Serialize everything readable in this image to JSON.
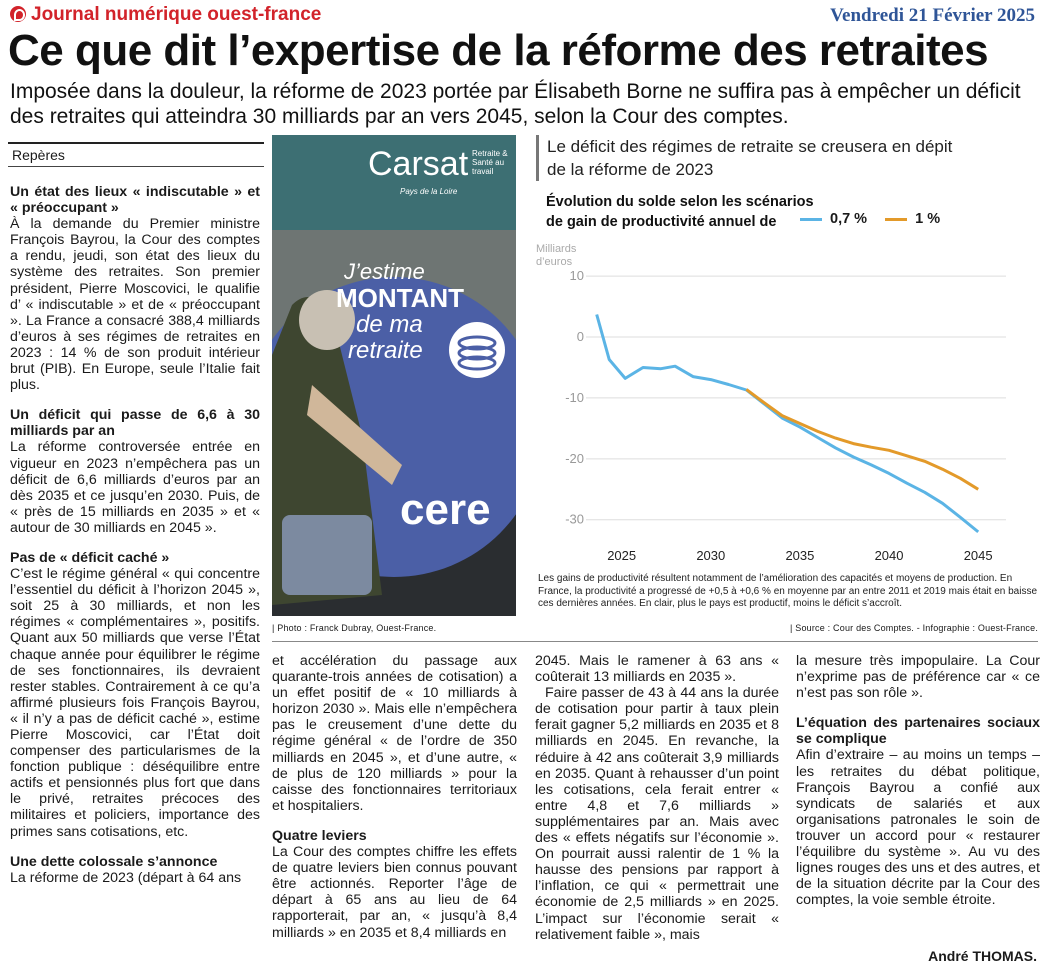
{
  "header": {
    "masthead": "Journal numérique ouest-france",
    "date": "Vendredi 21 Février 2025",
    "title": "Ce que dit l’expertise de la réforme des retraites",
    "subtitle": "Imposée dans la douleur, la réforme de 2023 portée par Élisabeth Borne ne suffira pas à empêcher un déficit des retraites qui atteindra 30 milliards par an vers 2045, selon la Cour des comptes.",
    "brand_color": "#d2232a",
    "date_color": "#2f5597"
  },
  "reperes": "Repères",
  "col1": {
    "h1": "Un état des lieux « indiscutable » et « préoccupant »",
    "p1": "À la demande du Premier ministre François Bayrou, la Cour des comptes a rendu, jeudi, son état des lieux du système des retraites. Son premier président, Pierre Moscovici, le qualifie d’ « indiscutable » et de « préoccupant ». La France a consacré 388,4 milliards d’euros à ses régimes de retraites en 2023 : 14 % de son produit intérieur brut (PIB). En Europe, seule l’Italie fait plus.",
    "h2": "Un déficit qui passe de 6,6 à 30 milliards par an",
    "p2": "La réforme controversée entrée en vigueur en 2023 n’empêchera pas un déficit de 6,6 milliards d’euros par an dès 2035 et ce jusqu’en 2030. Puis, de « près de 15 milliards en 2035 » et « autour de 30 milliards en 2045 ».",
    "h3": "Pas de « déficit caché »",
    "p3": "C’est le régime général « qui concentre l’essentiel du déficit à l’horizon 2045 », soit 25 à 30 milliards, et non les régimes « complémentaires », positifs. Quant aux 50 milliards que verse l’État chaque année pour équilibrer le régime de ses fonctionnaires, ils devraient rester stables. Contrairement à ce qu’a affirmé plusieurs fois François Bayrou, « il n’y a pas de déficit caché », estime Pierre Moscovici, car l’État doit compenser des particularismes de la fonction publique : déséquilibre entre actifs et pensionnés plus fort que dans le privé, retraites précoces des militaires et policiers, importance des primes sans cotisations, etc.",
    "h4": "Une dette colossale s’annonce",
    "p4": "La réforme de 2023 (départ à 64 ans"
  },
  "col2": {
    "p1": "et accélération du passage aux quarante-trois années de cotisation) a un effet positif de « 10 milliards à horizon 2030 ». Mais elle n’empêchera pas le creusement d’une dette du régime général « de l’ordre de 350 milliards en 2045 », et d’une autre, « de plus de 120 milliards » pour la caisse des fonctionnaires territoriaux et hospitaliers.",
    "h1": "Quatre leviers",
    "p2": "La Cour des comptes chiffre les effets de quatre leviers bien connus pouvant être actionnés. Reporter l’âge de départ à 65 ans au lieu de 64 rapporterait, par an, « jusqu’à 8,4 milliards » en 2035 et 8,4 milliards en"
  },
  "col3": {
    "p1": "2045. Mais le ramener à 63 ans « coûterait 13 milliards en 2035 ».",
    "p2": "Faire passer de 43 à 44 ans la durée de cotisation pour partir à taux plein ferait gagner 5,2 milliards en 2035 et 8 milliards en 2045. En revanche, la réduire à 42 ans coûterait 3,9 milliards en 2035. Quant à rehausser d’un point les cotisations, cela ferait entrer « entre 4,8 et 7,6 milliards » supplémentaires par an. Mais avec des « effets négatifs sur l’économie ». On pourrait aussi ralentir de 1 % la hausse des pensions par rapport à l’inflation, ce qui « permettrait une économie de 2,5 milliards » en 2025. L’impact sur l’économie serait « relativement faible », mais"
  },
  "col4": {
    "p1": "la mesure très impopulaire. La Cour n’exprime pas de préférence car « ce n’est pas son rôle ».",
    "h1": "L’équation des partenaires sociaux se complique",
    "p2": "Afin d’extraire – au moins un temps – les retraites du débat politique, François Bayrou a confié aux syndicats de salariés et aux organisations patronales le soin de trouver un accord pour « restaurer l’équilibre du système ». Au vu des lignes rouges des uns et des autres, et de la situation décrite par la Cour des comptes, la voie semble étroite.",
    "author": "André THOMAS."
  },
  "photo": {
    "caption": "| Photo : Franck Dubray, Ouest-France.",
    "sign_brand": "Carsat",
    "sign_tag": "Retraite & Santé au travail",
    "sign_region": "Pays de la Loire",
    "poster_line1": "J’estime",
    "poster_line2": "MONTANT",
    "poster_line3": "de ma",
    "poster_line4": "retraite",
    "bottom_text": "cere"
  },
  "chart": {
    "headline": "Le déficit des régimes de retraite se creusera en dépit de la réforme de 2023",
    "subhead_1": "Évolution du solde selon les scénarios",
    "subhead_2": "de gain de productivité annuel de",
    "unit_1": "Milliards",
    "unit_2": "d’euros",
    "note": "Les gains de productivité résultent notamment de l’amélioration des capacités et moyens de production. En France, la productivité a progressé de +0,5 à +0,6 % en moyenne par an entre 2011 et 2019 mais était en baisse ces dernières années. En clair, plus le pays est productif, moins le déficit s’accroît.",
    "source": "| Source : Cour des Comptes. - Infographie : Ouest-France."
  },
  "chart_data": {
    "type": "line",
    "title": "Évolution du solde selon les scénarios de gain de productivité annuel de",
    "ylabel": "Milliards d’euros",
    "ylim": [
      -33,
      11
    ],
    "xlim": [
      2023,
      2046
    ],
    "yticks": [
      10,
      0,
      -10,
      -20,
      -30
    ],
    "xticks": [
      2025,
      2030,
      2035,
      2040,
      2045
    ],
    "grid": true,
    "legend_position": "top",
    "series": [
      {
        "name": "0,7 %",
        "color": "#5bb4e5",
        "x": [
          2023.6,
          2024.3,
          2025.2,
          2026.2,
          2027.2,
          2028,
          2029,
          2030,
          2031,
          2032,
          2033,
          2034,
          2035,
          2036,
          2037,
          2038,
          2039,
          2040,
          2041,
          2042,
          2043,
          2044,
          2045
        ],
        "values": [
          3.7,
          -3.7,
          -6.8,
          -5,
          -5.2,
          -4.8,
          -6.5,
          -7,
          -7.8,
          -8.7,
          -11,
          -13.3,
          -14.8,
          -16.5,
          -18.2,
          -19.7,
          -21,
          -22.4,
          -24,
          -25.5,
          -27.3,
          -29.6,
          -32
        ]
      },
      {
        "name": "1 %",
        "color": "#e39a2a",
        "x": [
          2032,
          2033,
          2034,
          2035,
          2036,
          2037,
          2038,
          2039,
          2040,
          2041,
          2042,
          2043,
          2044,
          2045
        ],
        "values": [
          -8.6,
          -10.8,
          -12.9,
          -14.2,
          -15.5,
          -16.6,
          -17.5,
          -18.1,
          -18.6,
          -19.5,
          -20.4,
          -21.7,
          -23.2,
          -25
        ]
      }
    ]
  }
}
